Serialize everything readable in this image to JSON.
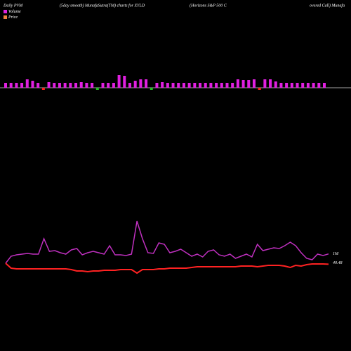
{
  "chart_data": {
    "type": "pvm",
    "title": "Daily PVM",
    "subtitle": "(5day smooth) MunafaSutra(TM) charts for XYLD",
    "name_parts": [
      "(Horizons S&P 500 C",
      "overed Call) Munafa"
    ],
    "bars": {
      "values": [
        7,
        7,
        7,
        7,
        12,
        10,
        7,
        -3,
        8,
        7,
        7,
        7,
        7,
        7,
        8,
        7,
        7,
        -3,
        7,
        7,
        7,
        18,
        17,
        7,
        10,
        12,
        12,
        -3,
        7,
        8,
        7,
        7,
        7,
        7,
        7,
        7,
        7,
        7,
        7,
        7,
        7,
        7,
        7,
        12,
        11,
        11,
        12,
        -3,
        12,
        12,
        9,
        7,
        7,
        7,
        7,
        7,
        7,
        7,
        7,
        7
      ],
      "colors": [
        "#e020e0",
        "#e020e0",
        "#e020e0",
        "#e020e0",
        "#e020e0",
        "#e020e0",
        "#e020e0",
        "#ff2020",
        "#e020e0",
        "#e020e0",
        "#e020e0",
        "#e020e0",
        "#e020e0",
        "#e020e0",
        "#e020e0",
        "#e020e0",
        "#e020e0",
        "#20c020",
        "#e020e0",
        "#e020e0",
        "#e020e0",
        "#e020e0",
        "#e020e0",
        "#e020e0",
        "#e020e0",
        "#e020e0",
        "#e020e0",
        "#20c020",
        "#e020e0",
        "#e020e0",
        "#e020e0",
        "#e020e0",
        "#e020e0",
        "#e020e0",
        "#e020e0",
        "#e020e0",
        "#e020e0",
        "#e020e0",
        "#e020e0",
        "#e020e0",
        "#e020e0",
        "#e020e0",
        "#e020e0",
        "#e020e0",
        "#e020e0",
        "#e020e0",
        "#e020e0",
        "#ff2020",
        "#e020e0",
        "#e020e0",
        "#e020e0",
        "#e020e0",
        "#e020e0",
        "#e020e0",
        "#e020e0",
        "#e020e0",
        "#e020e0",
        "#e020e0",
        "#e020e0",
        "#e020e0"
      ],
      "ylim": [
        -5,
        20
      ]
    },
    "series": [
      {
        "name": "Volume",
        "color": "#c030c0",
        "legend_color": "#e020e0",
        "ylim": [
          -1300000,
          4700000
        ],
        "end_label": "1M",
        "values": [
          200000,
          800000,
          920000,
          980000,
          1040000,
          980000,
          980000,
          2300000,
          1220000,
          1280000,
          1100000,
          980000,
          1340000,
          1460000,
          920000,
          1100000,
          1220000,
          1100000,
          980000,
          1700000,
          920000,
          920000,
          860000,
          980000,
          3800000,
          2300000,
          1100000,
          1040000,
          1940000,
          1820000,
          1100000,
          1220000,
          1400000,
          1100000,
          800000,
          980000,
          740000,
          1220000,
          1340000,
          920000,
          800000,
          980000,
          620000,
          800000,
          980000,
          740000,
          1820000,
          1280000,
          1400000,
          1520000,
          1460000,
          1700000,
          2000000,
          1700000,
          1100000,
          620000,
          500000,
          980000,
          860000,
          1000000
        ]
      },
      {
        "name": "Price",
        "color": "#ff2222",
        "legend_color": "#f08040",
        "ylim": [
          38.3,
          42.3
        ],
        "values": [
          40.55,
          40.2,
          40.15,
          40.15,
          40.15,
          40.15,
          40.15,
          40.15,
          40.15,
          40.15,
          40.15,
          40.15,
          40.1,
          40.0,
          40.0,
          39.95,
          40.0,
          40.0,
          40.05,
          40.05,
          40.05,
          40.1,
          40.1,
          40.1,
          39.85,
          40.1,
          40.1,
          40.1,
          40.15,
          40.15,
          40.2,
          40.2,
          40.2,
          40.2,
          40.25,
          40.3,
          40.3,
          40.3,
          40.3,
          40.3,
          40.3,
          40.3,
          40.3,
          40.35,
          40.35,
          40.35,
          40.3,
          40.35,
          40.4,
          40.4,
          40.4,
          40.35,
          40.25,
          40.4,
          40.35,
          40.45,
          40.5,
          40.5,
          40.5,
          40.48
        ]
      }
    ]
  }
}
